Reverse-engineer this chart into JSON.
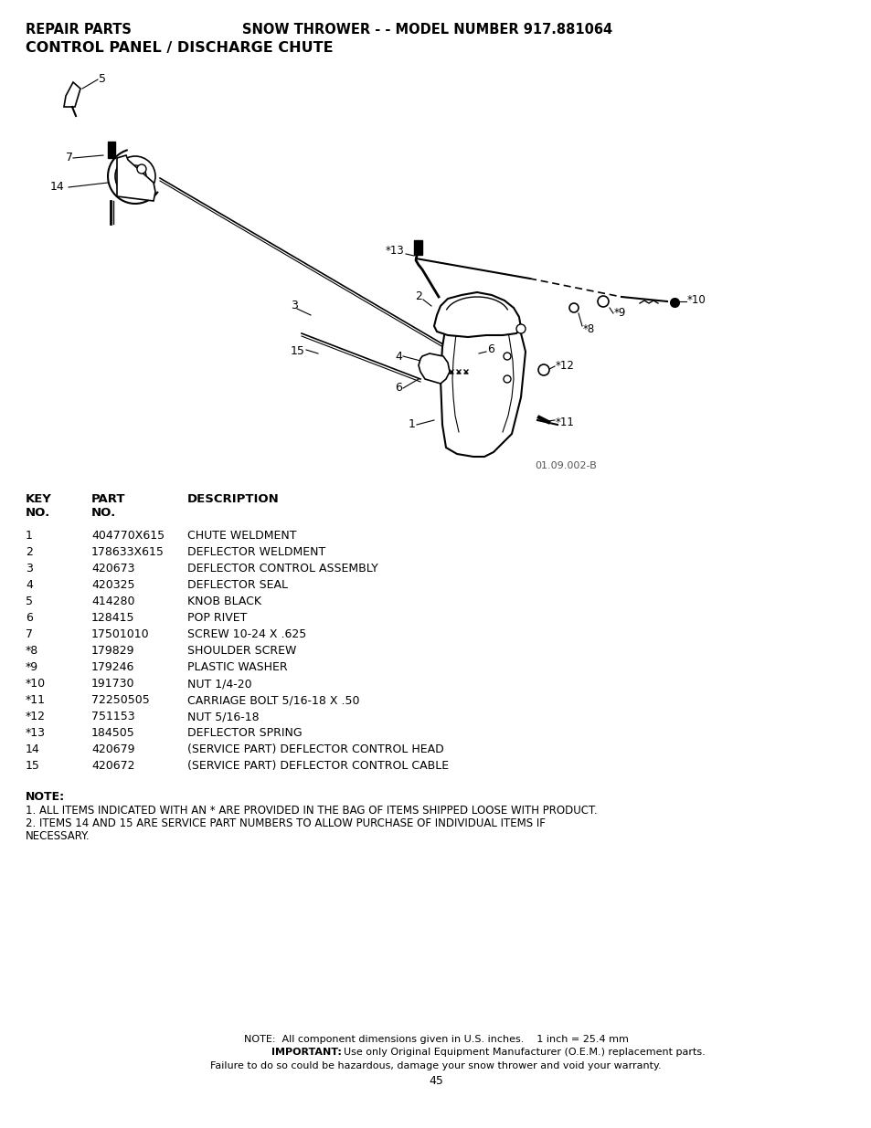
{
  "title_left": "REPAIR PARTS",
  "title_center": "SNOW THROWER - - MODEL NUMBER 917.881064",
  "subtitle": "CONTROL PANEL / DISCHARGE CHUTE",
  "table_data": [
    [
      "1",
      "404770X615",
      "CHUTE WELDMENT"
    ],
    [
      "2",
      "178633X615",
      "DEFLECTOR WELDMENT"
    ],
    [
      "3",
      "420673",
      "DEFLECTOR CONTROL ASSEMBLY"
    ],
    [
      "4",
      "420325",
      "DEFLECTOR SEAL"
    ],
    [
      "5",
      "414280",
      "KNOB BLACK"
    ],
    [
      "6",
      "128415",
      "POP RIVET"
    ],
    [
      "7",
      "17501010",
      "SCREW 10-24 X .625"
    ],
    [
      "*8",
      "179829",
      "SHOULDER SCREW"
    ],
    [
      "*9",
      "179246",
      "PLASTIC WASHER"
    ],
    [
      "*10",
      "191730",
      "NUT 1/4-20"
    ],
    [
      "*11",
      "72250505",
      "CARRIAGE BOLT 5/16-18 X .50"
    ],
    [
      "*12",
      "751153",
      "NUT 5/16-18"
    ],
    [
      "*13",
      "184505",
      "DEFLECTOR SPRING"
    ],
    [
      "14",
      "420679",
      "(SERVICE PART) DEFLECTOR CONTROL HEAD"
    ],
    [
      "15",
      "420672",
      "(SERVICE PART) DEFLECTOR CONTROL CABLE"
    ]
  ],
  "note_title": "NOTE:",
  "note_lines": [
    "1. ALL ITEMS INDICATED WITH AN * ARE PROVIDED IN THE BAG OF ITEMS SHIPPED LOOSE WITH PRODUCT.",
    "2. ITEMS 14 AND 15 ARE SERVICE PART NUMBERS TO ALLOW PURCHASE OF INDIVIDUAL ITEMS IF",
    "NECESSARY."
  ],
  "footer_note": "NOTE:  All component dimensions given in U.S. inches.    1 inch = 25.4 mm",
  "footer_important_bold": "IMPORTANT:",
  "footer_important_rest": "  Use only Original Equipment Manufacturer (O.E.M.) replacement parts.",
  "footer_warning": "Failure to do so could be hazardous, damage your snow thrower and void your warranty.",
  "page_number": "45",
  "bg_color": "#ffffff",
  "text_color": "#000000",
  "diagram_code": "01.09.002-B"
}
